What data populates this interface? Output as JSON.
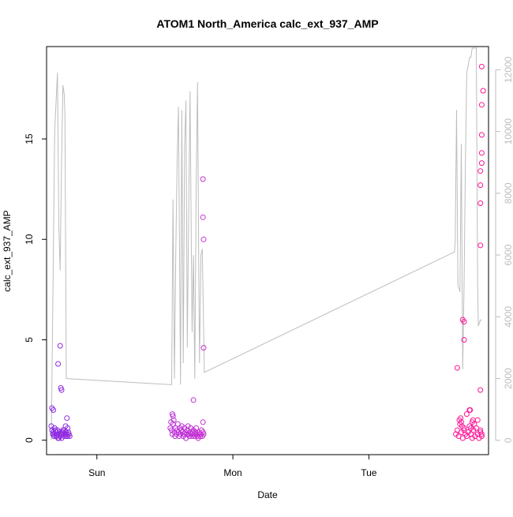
{
  "chart_data": {
    "type": "scatter",
    "title": "ATOM1 North_America calc_ext_937_AMP",
    "xlabel": "Date",
    "ylabel": "calc_ext_937_AMP",
    "x_unit": "days",
    "xlim": [
      -0.37,
      2.88
    ],
    "ylim": [
      -0.72,
      19.6
    ],
    "y2lim": [
      -464,
      12750
    ],
    "x_ticks": [
      {
        "value": 0,
        "label": "Sun"
      },
      {
        "value": 1,
        "label": "Mon"
      },
      {
        "value": 2,
        "label": "Tue"
      }
    ],
    "y_ticks": [
      0,
      5,
      10,
      15
    ],
    "y2_ticks": [
      0,
      2000,
      4000,
      6000,
      8000,
      10000,
      12000
    ],
    "grid": false,
    "legend": "none",
    "colors": {
      "points_start": "#8a2be2",
      "points_mid": "#dd33cc",
      "points_end": "#ff1493",
      "line": "#bdbdbd",
      "frame": "#000000",
      "right_axis": "#bdbdbd"
    },
    "series": [
      {
        "kind": "points",
        "axis": "left",
        "marker": "open-circle",
        "x": [
          -0.335,
          -0.33,
          -0.325,
          -0.32,
          -0.315,
          -0.31,
          -0.305,
          -0.3,
          -0.295,
          -0.29,
          -0.285,
          -0.28,
          -0.275,
          -0.27,
          -0.265,
          -0.26,
          -0.255,
          -0.25,
          -0.245,
          -0.24,
          -0.235,
          -0.23,
          -0.225,
          -0.22,
          -0.215,
          -0.21,
          -0.205,
          -0.2,
          -0.33,
          -0.32,
          -0.29,
          -0.285,
          -0.27,
          -0.265,
          -0.26,
          -0.25,
          -0.24,
          -0.22,
          -0.215,
          -0.23,
          -0.31,
          -0.3,
          -0.28,
          -0.26,
          0.54,
          0.545,
          0.55,
          0.555,
          0.56,
          0.565,
          0.57,
          0.575,
          0.58,
          0.585,
          0.59,
          0.595,
          0.6,
          0.605,
          0.61,
          0.615,
          0.62,
          0.625,
          0.63,
          0.635,
          0.64,
          0.645,
          0.65,
          0.655,
          0.66,
          0.665,
          0.67,
          0.675,
          0.68,
          0.685,
          0.69,
          0.695,
          0.7,
          0.705,
          0.71,
          0.715,
          0.72,
          0.725,
          0.73,
          0.735,
          0.74,
          0.745,
          0.75,
          0.755,
          0.76,
          0.765,
          0.77,
          0.775,
          0.78,
          0.785,
          0.555,
          0.56,
          0.71,
          0.78,
          0.785,
          0.785,
          0.78,
          0.78,
          2.64,
          2.65,
          2.66,
          2.67,
          2.68,
          2.69,
          2.7,
          2.71,
          2.72,
          2.73,
          2.74,
          2.75,
          2.76,
          2.77,
          2.78,
          2.79,
          2.8,
          2.81,
          2.82,
          2.83,
          2.665,
          2.675,
          2.68,
          2.685,
          2.7,
          2.72,
          2.745,
          2.76,
          2.765,
          2.775,
          2.65,
          2.69,
          2.7,
          2.7,
          2.74,
          2.75,
          2.8,
          2.82,
          2.83,
          2.82,
          2.82,
          2.82,
          2.82,
          2.82,
          2.83,
          2.83,
          2.83,
          2.83,
          2.84,
          2.83
        ],
        "y": [
          0.7,
          0.5,
          0.3,
          0.4,
          0.2,
          0.3,
          0.5,
          0.4,
          0.2,
          0.3,
          0.1,
          0.3,
          0.4,
          0.2,
          0.3,
          0.1,
          0.4,
          0.5,
          0.3,
          0.2,
          0.3,
          0.4,
          0.2,
          0.3,
          0.2,
          0.4,
          0.3,
          0.2,
          1.6,
          1.5,
          0.5,
          3.8,
          4.7,
          2.6,
          2.5,
          0.4,
          0.5,
          1.1,
          0.6,
          0.7,
          0.6,
          0.2,
          0.1,
          0.3,
          0.6,
          0.9,
          0.5,
          0.3,
          1.2,
          1.0,
          0.4,
          0.2,
          0.6,
          0.3,
          0.5,
          0.8,
          0.4,
          0.2,
          0.6,
          0.3,
          0.5,
          0.7,
          0.4,
          0.2,
          0.3,
          0.6,
          0.4,
          0.1,
          0.3,
          0.5,
          0.7,
          0.3,
          0.2,
          0.4,
          0.6,
          0.3,
          0.2,
          0.4,
          0.5,
          0.3,
          0.2,
          0.4,
          0.6,
          0.3,
          0.2,
          0.1,
          0.4,
          0.3,
          0.2,
          0.3,
          0.5,
          0.2,
          0.4,
          0.3,
          1.3,
          0.8,
          2.0,
          0.9,
          4.6,
          10.0,
          11.1,
          13.0,
          0.3,
          0.5,
          0.2,
          0.8,
          0.4,
          0.1,
          0.6,
          0.3,
          0.2,
          0.4,
          0.7,
          0.3,
          0.1,
          0.5,
          0.2,
          0.6,
          0.3,
          0.1,
          0.4,
          0.2,
          1.0,
          1.1,
          0.9,
          0.7,
          0.5,
          1.3,
          1.5,
          0.9,
          1.0,
          0.8,
          3.6,
          6.0,
          5.9,
          5.0,
          1.5,
          0.6,
          1.0,
          0.5,
          0.3,
          2.5,
          9.7,
          11.8,
          12.7,
          13.4,
          14.3,
          13.8,
          15.2,
          16.7,
          17.4,
          18.6
        ],
        "color_gradient": true
      },
      {
        "kind": "line",
        "axis": "right",
        "points": [
          [
            -0.335,
            0
          ],
          [
            -0.31,
            10000
          ],
          [
            -0.3,
            11000
          ],
          [
            -0.29,
            11900
          ],
          [
            -0.28,
            7000
          ],
          [
            -0.27,
            5500
          ],
          [
            -0.26,
            9000
          ],
          [
            -0.25,
            11500
          ],
          [
            -0.24,
            11200
          ],
          [
            -0.235,
            10500
          ],
          [
            -0.225,
            2000
          ],
          [
            0.55,
            1800
          ],
          [
            0.56,
            7800
          ],
          [
            0.57,
            2000
          ],
          [
            0.58,
            6000
          ],
          [
            0.59,
            9000
          ],
          [
            0.6,
            10800
          ],
          [
            0.615,
            1800
          ],
          [
            0.625,
            10700
          ],
          [
            0.635,
            2500
          ],
          [
            0.645,
            9500
          ],
          [
            0.655,
            11000
          ],
          [
            0.665,
            3000
          ],
          [
            0.675,
            7500
          ],
          [
            0.685,
            11300
          ],
          [
            0.695,
            6000
          ],
          [
            0.7,
            3500
          ],
          [
            0.71,
            6000
          ],
          [
            0.72,
            2000
          ],
          [
            0.73,
            8000
          ],
          [
            0.74,
            11600
          ],
          [
            0.75,
            5000
          ],
          [
            0.755,
            2500
          ],
          [
            0.765,
            6000
          ],
          [
            0.775,
            6200
          ],
          [
            0.79,
            2200
          ],
          [
            2.63,
            6100
          ],
          [
            2.635,
            6400
          ],
          [
            2.64,
            8500
          ],
          [
            2.645,
            10700
          ],
          [
            2.655,
            5000
          ],
          [
            2.665,
            4900
          ],
          [
            2.67,
            4800
          ],
          [
            2.68,
            9600
          ],
          [
            2.69,
            2300
          ],
          [
            2.7,
            5000
          ],
          [
            2.71,
            9000
          ],
          [
            2.72,
            11900
          ],
          [
            2.73,
            12150
          ],
          [
            2.74,
            12400
          ],
          [
            2.75,
            12400
          ],
          [
            2.76,
            12700
          ],
          [
            2.765,
            12700
          ],
          [
            2.78,
            12700
          ],
          [
            2.79,
            12700
          ],
          [
            2.8,
            5000
          ],
          [
            2.805,
            3700
          ],
          [
            2.82,
            3900
          ],
          [
            2.83,
            3900
          ]
        ]
      }
    ]
  }
}
